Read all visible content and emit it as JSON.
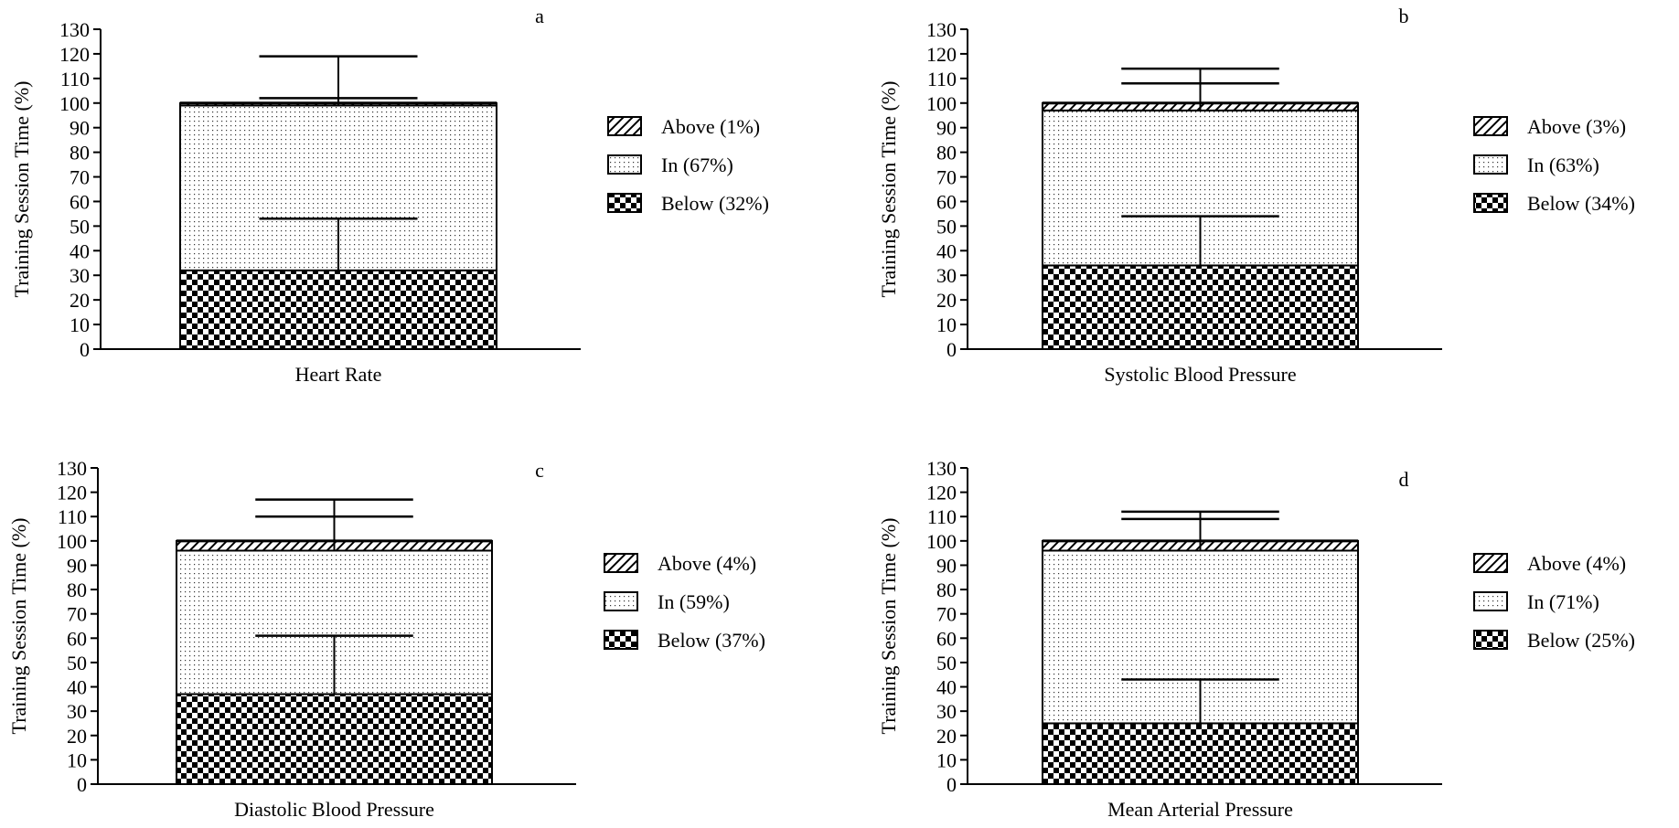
{
  "chart_data": [
    {
      "type": "bar",
      "panel_label": "a",
      "categories": [
        "Heart Rate"
      ],
      "ylabel": "Training Session Time (%)",
      "ylim": [
        0,
        130
      ],
      "yticks": [
        0,
        10,
        20,
        30,
        40,
        50,
        60,
        70,
        80,
        90,
        100,
        110,
        120,
        130
      ],
      "series": [
        {
          "name": "Below (32%)",
          "pattern": "checker",
          "values": [
            32
          ],
          "error": [
            21
          ]
        },
        {
          "name": "In (67%)",
          "pattern": "dots",
          "values": [
            67
          ],
          "error": [
            3
          ]
        },
        {
          "name": "Above (1%)",
          "pattern": "hatch",
          "values": [
            1
          ],
          "error": [
            19
          ]
        }
      ],
      "legend": [
        "Above (1%)",
        "In (67%)",
        "Below (32%)"
      ],
      "legend_position": "right"
    },
    {
      "type": "bar",
      "panel_label": "b",
      "categories": [
        "Systolic Blood Pressure"
      ],
      "ylabel": "Training Session Time (%)",
      "ylim": [
        0,
        130
      ],
      "yticks": [
        0,
        10,
        20,
        30,
        40,
        50,
        60,
        70,
        80,
        90,
        100,
        110,
        120,
        130
      ],
      "series": [
        {
          "name": "Below (34%)",
          "pattern": "checker",
          "values": [
            34
          ],
          "error": [
            20
          ]
        },
        {
          "name": "In (63%)",
          "pattern": "dots",
          "values": [
            63
          ],
          "error": [
            11
          ]
        },
        {
          "name": "Above (3%)",
          "pattern": "hatch",
          "values": [
            3
          ],
          "error": [
            14
          ]
        }
      ],
      "legend": [
        "Above (3%)",
        "In (63%)",
        "Below (34%)"
      ],
      "legend_position": "right"
    },
    {
      "type": "bar",
      "panel_label": "c",
      "categories": [
        "Diastolic Blood Pressure"
      ],
      "ylabel": "Training Session Time (%)",
      "ylim": [
        0,
        130
      ],
      "yticks": [
        0,
        10,
        20,
        30,
        40,
        50,
        60,
        70,
        80,
        90,
        100,
        110,
        120,
        130
      ],
      "series": [
        {
          "name": "Below (37%)",
          "pattern": "checker",
          "values": [
            37
          ],
          "error": [
            24
          ]
        },
        {
          "name": "In (59%)",
          "pattern": "dots",
          "values": [
            59
          ],
          "error": [
            14
          ]
        },
        {
          "name": "Above (4%)",
          "pattern": "hatch",
          "values": [
            4
          ],
          "error": [
            17
          ]
        }
      ],
      "legend": [
        "Above (4%)",
        "In (59%)",
        "Below (37%)"
      ],
      "legend_position": "right"
    },
    {
      "type": "bar",
      "panel_label": "d",
      "categories": [
        "Mean Arterial Pressure"
      ],
      "ylabel": "Training Session Time (%)",
      "ylim": [
        0,
        130
      ],
      "yticks": [
        0,
        10,
        20,
        30,
        40,
        50,
        60,
        70,
        80,
        90,
        100,
        110,
        120,
        130
      ],
      "series": [
        {
          "name": "Below (25%)",
          "pattern": "checker",
          "values": [
            25
          ],
          "error": [
            18
          ]
        },
        {
          "name": "In (71%)",
          "pattern": "dots",
          "values": [
            71
          ],
          "error": [
            13
          ]
        },
        {
          "name": "Above (4%)",
          "pattern": "hatch",
          "values": [
            4
          ],
          "error": [
            12
          ]
        }
      ],
      "legend": [
        "Above (4%)",
        "In (71%)",
        "Below (25%)"
      ],
      "legend_position": "right"
    }
  ]
}
